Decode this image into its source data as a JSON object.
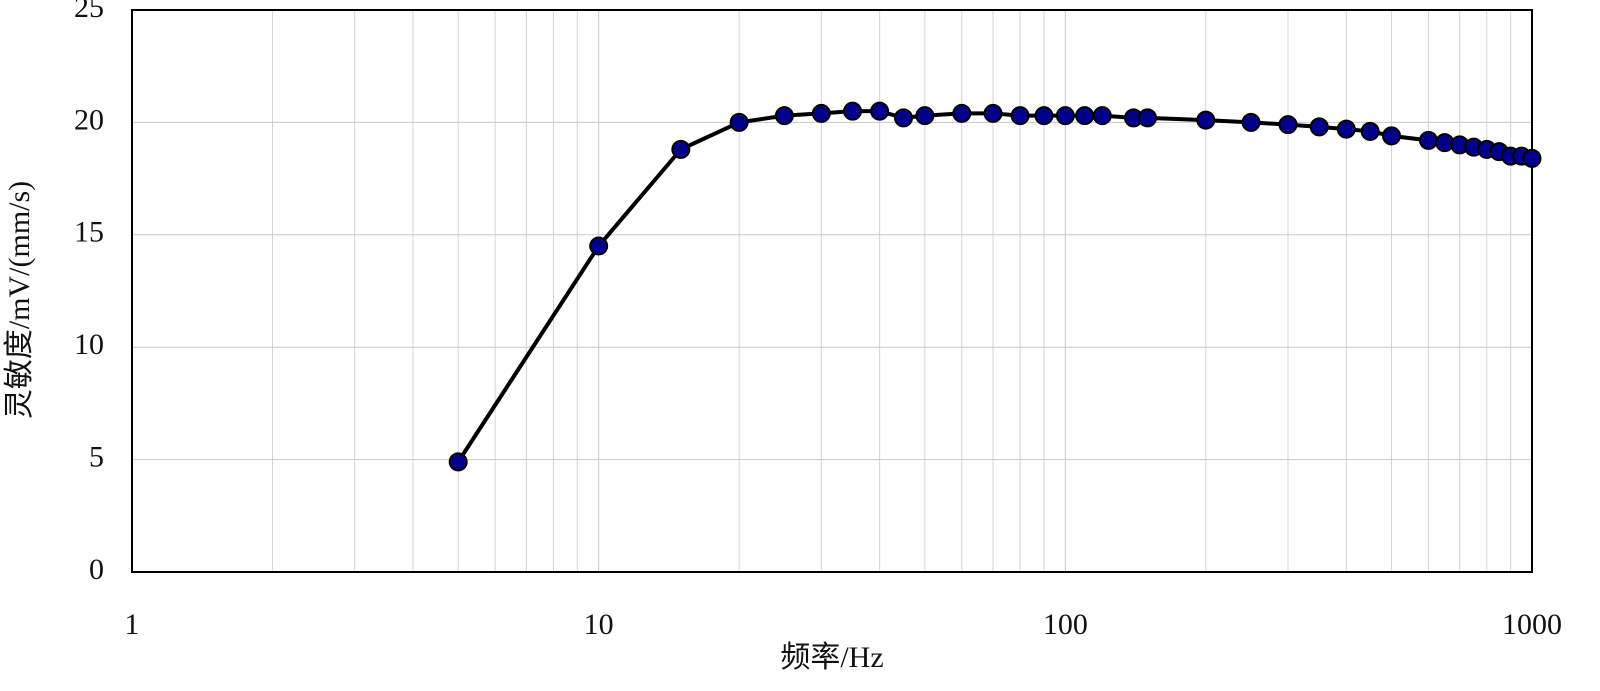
{
  "chart_data": {
    "type": "line",
    "xlabel": "频率/Hz",
    "ylabel": "灵敏度/mV/(mm/s)",
    "x": [
      5,
      10,
      15,
      20,
      25,
      30,
      35,
      40,
      45,
      50,
      60,
      70,
      80,
      90,
      100,
      110,
      120,
      140,
      150,
      200,
      250,
      300,
      350,
      400,
      450,
      500,
      600,
      650,
      700,
      750,
      800,
      850,
      900,
      950,
      1000
    ],
    "values": [
      4.9,
      14.5,
      18.8,
      20.0,
      20.3,
      20.4,
      20.5,
      20.5,
      20.2,
      20.3,
      20.4,
      20.4,
      20.3,
      20.3,
      20.3,
      20.3,
      20.3,
      20.2,
      20.2,
      20.1,
      20.0,
      19.9,
      19.8,
      19.7,
      19.6,
      19.4,
      19.2,
      19.1,
      19.0,
      18.9,
      18.8,
      18.7,
      18.5,
      18.5,
      18.4
    ],
    "color": "#000000",
    "marker_color": "#00008b",
    "xlog": true,
    "xlim": [
      1,
      1000
    ],
    "xticks": [
      1,
      10,
      100,
      1000
    ],
    "ylim": [
      0,
      25
    ],
    "yticks": [
      0,
      5,
      10,
      15,
      20,
      25
    ],
    "grid": true
  }
}
